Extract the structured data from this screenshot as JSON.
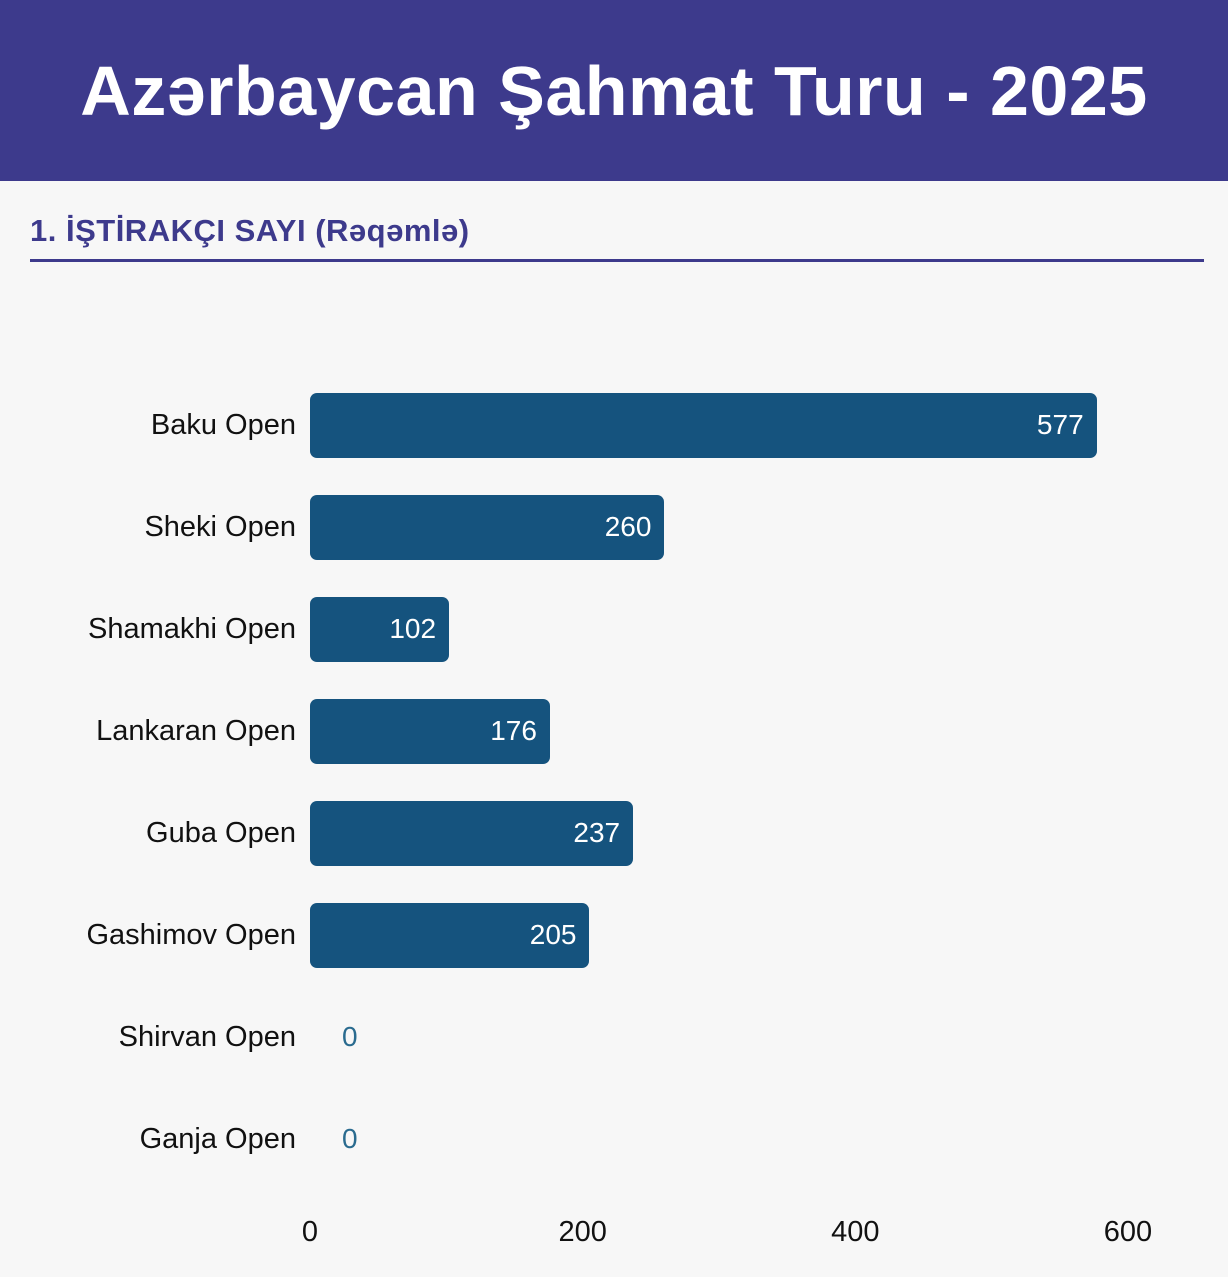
{
  "header": {
    "title": "Azərbaycan Şahmat Turu - 2025"
  },
  "section": {
    "title": "1. İŞTİRAKÇI SAYI (Rəqəmlə)"
  },
  "colors": {
    "header_bg": "#3D3A8C",
    "accent": "#3D3A8C",
    "page_bg": "#F7F7F7",
    "bar": "#15537E",
    "bar_value_text": "#FFFFFF",
    "zero_value_text": "#2A6B8F",
    "label_text": "#111111"
  },
  "chart_data": {
    "type": "bar",
    "orientation": "horizontal",
    "title": "1. İŞTİRAKÇI SAYI (Rəqəmlə)",
    "categories": [
      "Baku Open",
      "Sheki Open",
      "Shamakhi Open",
      "Lankaran Open",
      "Guba Open",
      "Gashimov Open",
      "Shirvan Open",
      "Ganja Open"
    ],
    "values": [
      577,
      260,
      102,
      176,
      237,
      205,
      0,
      0
    ],
    "xlabel": "",
    "ylabel": "",
    "xlim": [
      0,
      600
    ],
    "xticks": [
      "0",
      "200",
      "400",
      "600"
    ],
    "grid": false,
    "legend": false,
    "value_labels": "inside-bar-right, zero values shown as teal text left of axis"
  }
}
